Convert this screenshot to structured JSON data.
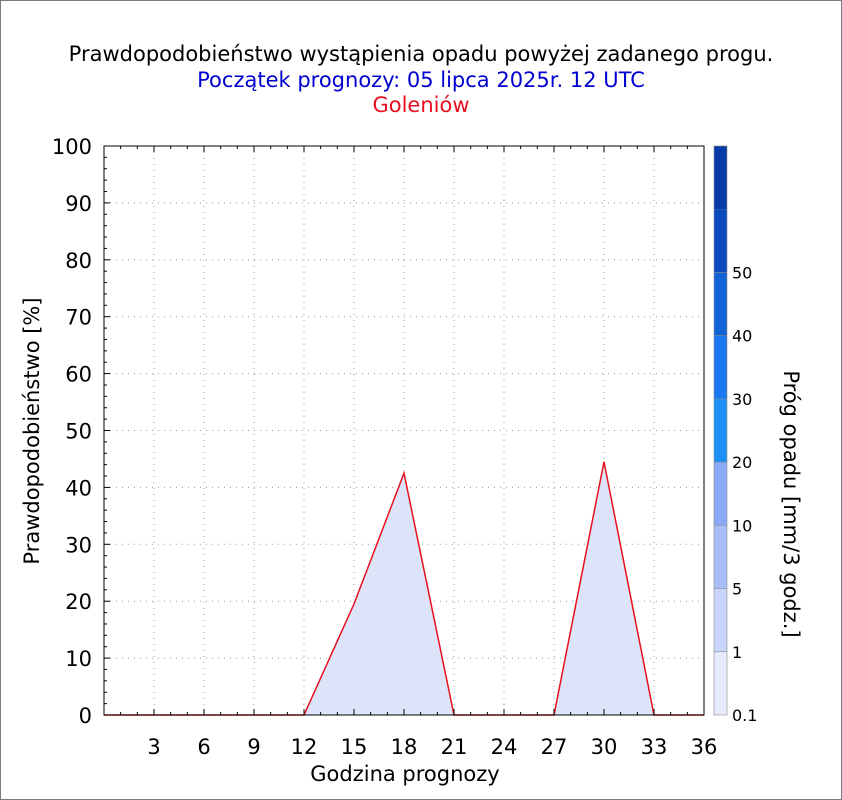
{
  "chart_data": {
    "type": "area",
    "title": "Prawdopodobieństwo wystąpienia opadu powyżej zadanego progu.",
    "subtitle": "Początek prognozy: 05 lipca 2025r. 12 UTC",
    "location": "Goleniów",
    "xlabel": "Godzina prognozy",
    "ylabel": "Prawdopodobieństwo [%]",
    "xlim": [
      0,
      36
    ],
    "ylim": [
      0,
      100
    ],
    "x_ticks": [
      3,
      6,
      9,
      12,
      15,
      18,
      21,
      24,
      27,
      30,
      33,
      36
    ],
    "y_ticks": [
      0,
      10,
      20,
      30,
      40,
      50,
      60,
      70,
      80,
      90,
      100
    ],
    "grid": true,
    "series": [
      {
        "threshold": "0.1",
        "color": "#e8101e",
        "fill": "#dde4fa",
        "x": [
          0,
          3,
          6,
          9,
          12,
          15,
          18,
          21,
          24,
          27,
          30,
          33,
          36
        ],
        "values": [
          0,
          0,
          0,
          0,
          0,
          19.5,
          42.5,
          0,
          0,
          0,
          44.5,
          0,
          0
        ]
      }
    ],
    "colorbar": {
      "label": "Próg opadu [mm/3 godz.]",
      "ticks": [
        "0.1",
        "1",
        "5",
        "10",
        "20",
        "30",
        "40",
        "50"
      ],
      "colors": [
        "#e6ebfd",
        "#c9d5fb",
        "#a9bef8",
        "#8aaaf8",
        "#1e90f5",
        "#1a78f0",
        "#1262d8",
        "#0a4cc0",
        "#073ba8"
      ]
    }
  }
}
